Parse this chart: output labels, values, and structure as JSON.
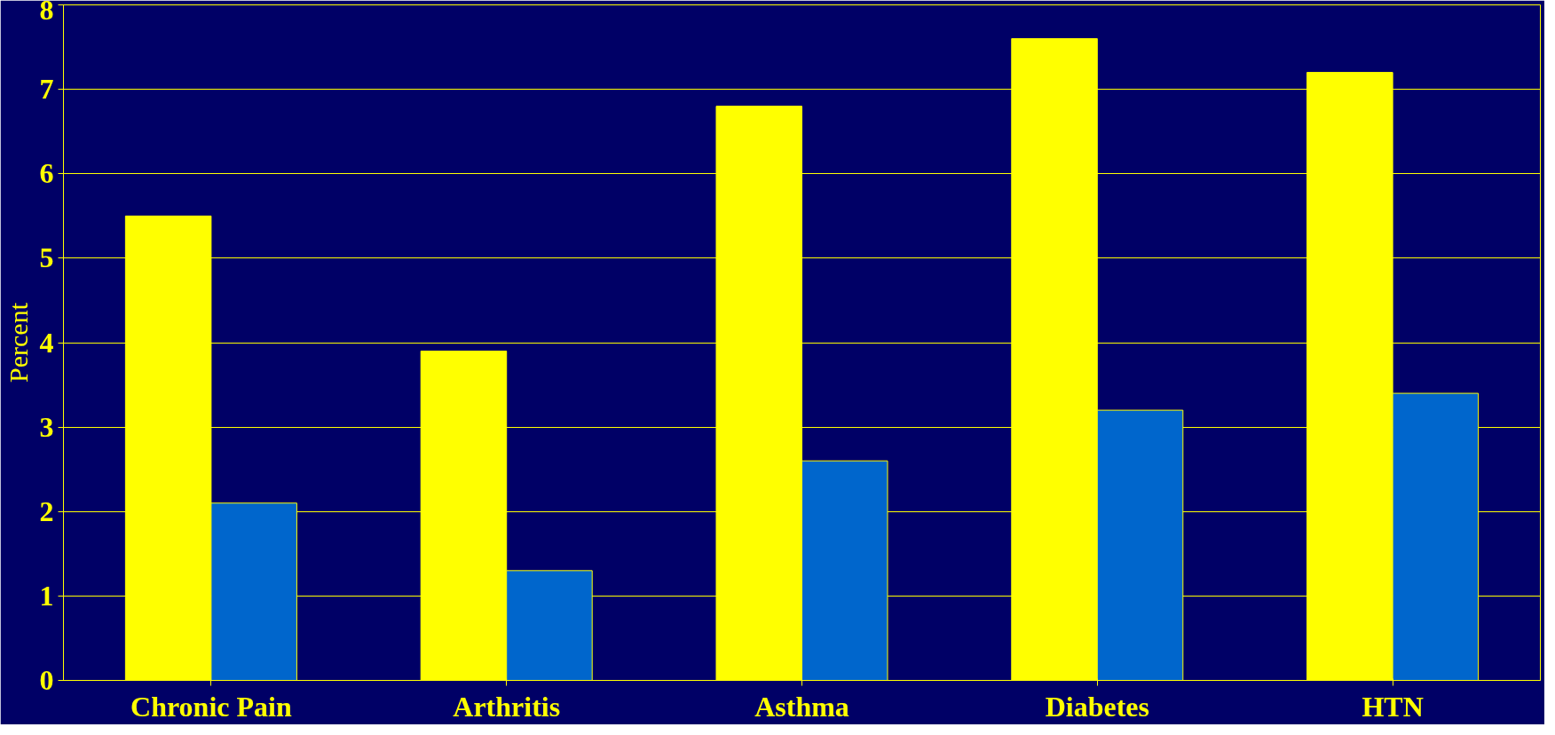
{
  "chart_data": {
    "type": "bar",
    "ylabel": "Percent",
    "categories": [
      "Chronic Pain",
      "Arthritis",
      "Asthma",
      "Diabetes",
      "HTN"
    ],
    "series": [
      {
        "color": "#ffff00",
        "values": [
          5.5,
          3.9,
          6.8,
          7.6,
          7.2
        ]
      },
      {
        "color": "#0066cc",
        "values": [
          2.1,
          1.3,
          2.6,
          3.2,
          3.4
        ]
      }
    ],
    "ylim": [
      0,
      8
    ],
    "yticks": [
      0,
      1,
      2,
      3,
      4,
      5,
      6,
      7,
      8
    ],
    "grid": "y"
  }
}
